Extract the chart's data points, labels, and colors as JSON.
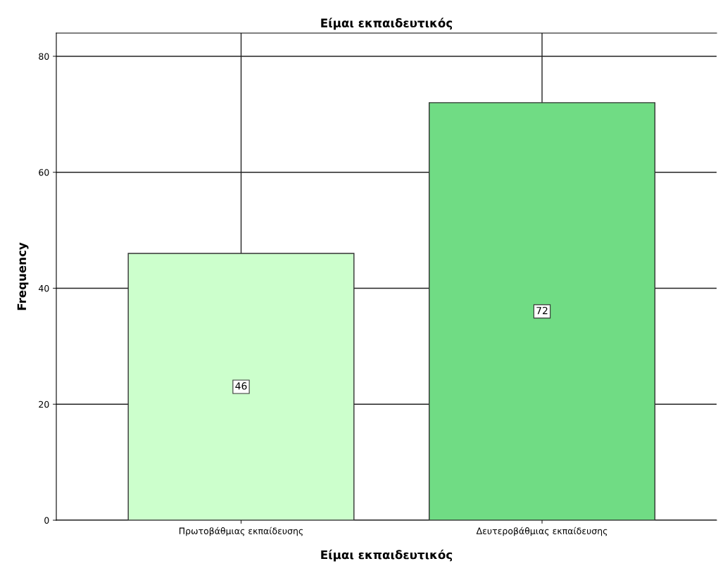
{
  "chart_data": {
    "type": "bar",
    "title": "Είμαι εκπαιδευτικός",
    "xlabel": "Είμαι εκπαιδευτικός",
    "ylabel": "Frequency",
    "categories": [
      "Πρωτοβάθμιας εκπαίδευσης",
      "Δευτεροβάθμιας εκπαίδευσης"
    ],
    "values": [
      46,
      72
    ],
    "colors": [
      "#ccffcc",
      "#70dc84"
    ],
    "ylim": [
      0,
      84
    ],
    "yticks": [
      0,
      20,
      40,
      60,
      80
    ],
    "grid": true,
    "data_labels": true
  }
}
